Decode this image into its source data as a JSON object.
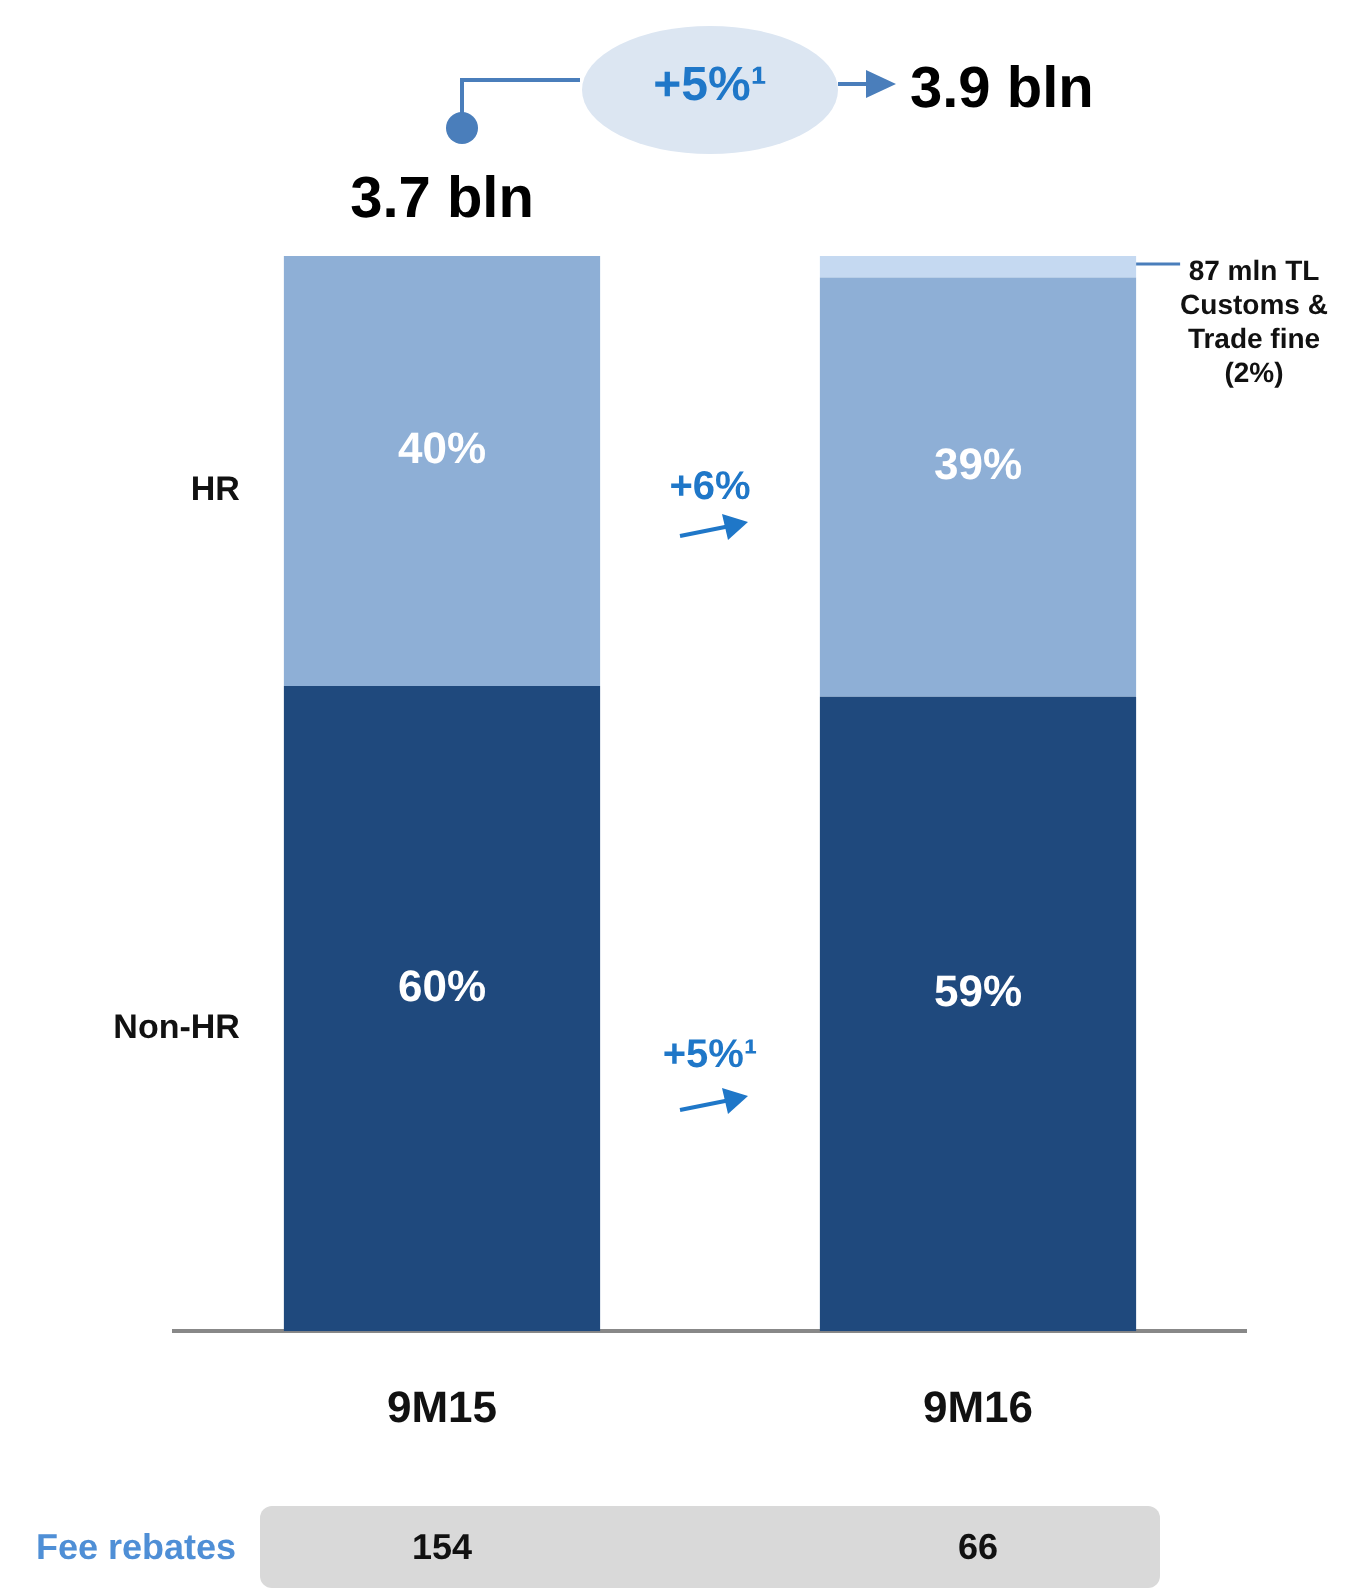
{
  "chart_data": {
    "type": "bar",
    "stacked": true,
    "tick_labels": "x",
    "categories": [
      "9M15",
      "9M16"
    ],
    "series": [
      {
        "name": "Non-HR",
        "color": "#1f497d",
        "values": [
          60,
          59
        ],
        "value_labels": [
          "60%",
          "59%"
        ]
      },
      {
        "name": "HR",
        "color": "#8eafd6",
        "values": [
          40,
          39
        ],
        "value_labels": [
          "40%",
          "39%"
        ]
      },
      {
        "color": "#c5d9f1",
        "values": [
          null,
          2
        ],
        "value_labels": [
          null,
          "87 mln TL Customs & Trade fine (2%)"
        ]
      }
    ],
    "annotations": [
      "3.7 bln",
      "3.9 bln",
      "+5%¹",
      "+6%",
      "+5%¹",
      "Fee rebates",
      "154",
      "66"
    ]
  }
}
